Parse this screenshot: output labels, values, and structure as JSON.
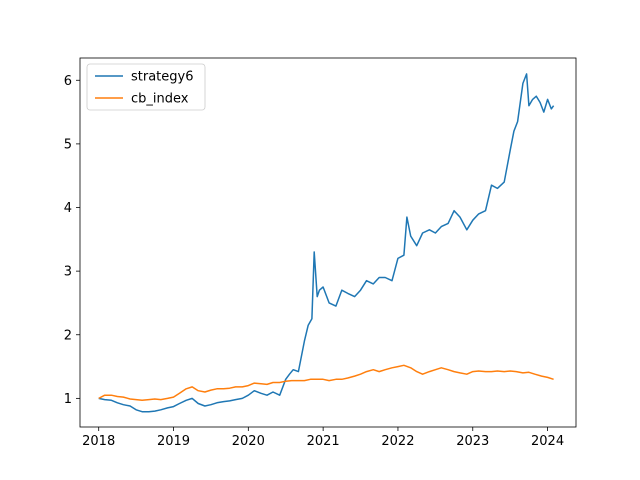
{
  "chart_data": {
    "type": "line",
    "title": "",
    "xlabel": "",
    "ylabel": "",
    "xlim": [
      2017.75,
      2024.38
    ],
    "ylim": [
      0.55,
      6.35
    ],
    "x_ticks": [
      "2018",
      "2019",
      "2020",
      "2021",
      "2022",
      "2023",
      "2024"
    ],
    "y_ticks": [
      "1",
      "2",
      "3",
      "4",
      "5",
      "6"
    ],
    "grid": false,
    "legend_position": "top-left",
    "series": [
      {
        "name": "strategy6",
        "color": "#1f77b4",
        "x": [
          2018.0,
          2018.08,
          2018.17,
          2018.25,
          2018.33,
          2018.42,
          2018.5,
          2018.58,
          2018.67,
          2018.75,
          2018.83,
          2018.92,
          2019.0,
          2019.08,
          2019.17,
          2019.25,
          2019.33,
          2019.42,
          2019.5,
          2019.58,
          2019.67,
          2019.75,
          2019.83,
          2019.92,
          2020.0,
          2020.08,
          2020.17,
          2020.25,
          2020.33,
          2020.42,
          2020.5,
          2020.55,
          2020.6,
          2020.67,
          2020.75,
          2020.8,
          2020.85,
          2020.88,
          2020.92,
          2020.95,
          2021.0,
          2021.08,
          2021.17,
          2021.25,
          2021.33,
          2021.42,
          2021.5,
          2021.58,
          2021.67,
          2021.75,
          2021.83,
          2021.92,
          2022.0,
          2022.08,
          2022.12,
          2022.17,
          2022.25,
          2022.33,
          2022.42,
          2022.5,
          2022.58,
          2022.67,
          2022.75,
          2022.83,
          2022.92,
          2023.0,
          2023.08,
          2023.17,
          2023.25,
          2023.33,
          2023.42,
          2023.5,
          2023.55,
          2023.6,
          2023.67,
          2023.72,
          2023.75,
          2023.8,
          2023.85,
          2023.9,
          2023.95,
          2024.0,
          2024.05,
          2024.08
        ],
        "values": [
          1.0,
          0.98,
          0.97,
          0.93,
          0.9,
          0.88,
          0.82,
          0.79,
          0.79,
          0.8,
          0.82,
          0.85,
          0.87,
          0.92,
          0.97,
          1.0,
          0.92,
          0.88,
          0.9,
          0.93,
          0.95,
          0.96,
          0.98,
          1.0,
          1.05,
          1.12,
          1.08,
          1.05,
          1.1,
          1.05,
          1.3,
          1.38,
          1.45,
          1.42,
          1.9,
          2.15,
          2.25,
          3.3,
          2.6,
          2.7,
          2.75,
          2.5,
          2.45,
          2.7,
          2.65,
          2.6,
          2.7,
          2.85,
          2.8,
          2.9,
          2.9,
          2.85,
          3.2,
          3.25,
          3.85,
          3.55,
          3.4,
          3.6,
          3.65,
          3.6,
          3.7,
          3.75,
          3.95,
          3.85,
          3.65,
          3.8,
          3.9,
          3.95,
          4.35,
          4.3,
          4.4,
          4.9,
          5.2,
          5.35,
          5.95,
          6.1,
          5.6,
          5.7,
          5.75,
          5.65,
          5.5,
          5.7,
          5.55,
          5.6
        ]
      },
      {
        "name": "cb_index",
        "color": "#ff7f0e",
        "x": [
          2018.0,
          2018.08,
          2018.17,
          2018.25,
          2018.33,
          2018.42,
          2018.5,
          2018.58,
          2018.67,
          2018.75,
          2018.83,
          2018.92,
          2019.0,
          2019.08,
          2019.17,
          2019.25,
          2019.33,
          2019.42,
          2019.5,
          2019.58,
          2019.67,
          2019.75,
          2019.83,
          2019.92,
          2020.0,
          2020.08,
          2020.17,
          2020.25,
          2020.33,
          2020.42,
          2020.5,
          2020.58,
          2020.67,
          2020.75,
          2020.83,
          2020.92,
          2021.0,
          2021.08,
          2021.17,
          2021.25,
          2021.33,
          2021.42,
          2021.5,
          2021.58,
          2021.67,
          2021.75,
          2021.83,
          2021.92,
          2022.0,
          2022.08,
          2022.17,
          2022.25,
          2022.33,
          2022.42,
          2022.5,
          2022.58,
          2022.67,
          2022.75,
          2022.83,
          2022.92,
          2023.0,
          2023.08,
          2023.17,
          2023.25,
          2023.33,
          2023.42,
          2023.5,
          2023.58,
          2023.67,
          2023.75,
          2023.83,
          2023.92,
          2024.0,
          2024.08
        ],
        "values": [
          1.0,
          1.05,
          1.05,
          1.03,
          1.02,
          0.99,
          0.98,
          0.97,
          0.98,
          0.99,
          0.98,
          1.0,
          1.02,
          1.08,
          1.15,
          1.18,
          1.12,
          1.1,
          1.13,
          1.15,
          1.15,
          1.16,
          1.18,
          1.18,
          1.2,
          1.24,
          1.23,
          1.22,
          1.25,
          1.25,
          1.27,
          1.28,
          1.28,
          1.28,
          1.3,
          1.3,
          1.3,
          1.28,
          1.3,
          1.3,
          1.32,
          1.35,
          1.38,
          1.42,
          1.45,
          1.42,
          1.45,
          1.48,
          1.5,
          1.52,
          1.48,
          1.42,
          1.38,
          1.42,
          1.45,
          1.48,
          1.45,
          1.42,
          1.4,
          1.38,
          1.42,
          1.43,
          1.42,
          1.42,
          1.43,
          1.42,
          1.43,
          1.42,
          1.4,
          1.41,
          1.38,
          1.35,
          1.33,
          1.3
        ]
      }
    ]
  }
}
